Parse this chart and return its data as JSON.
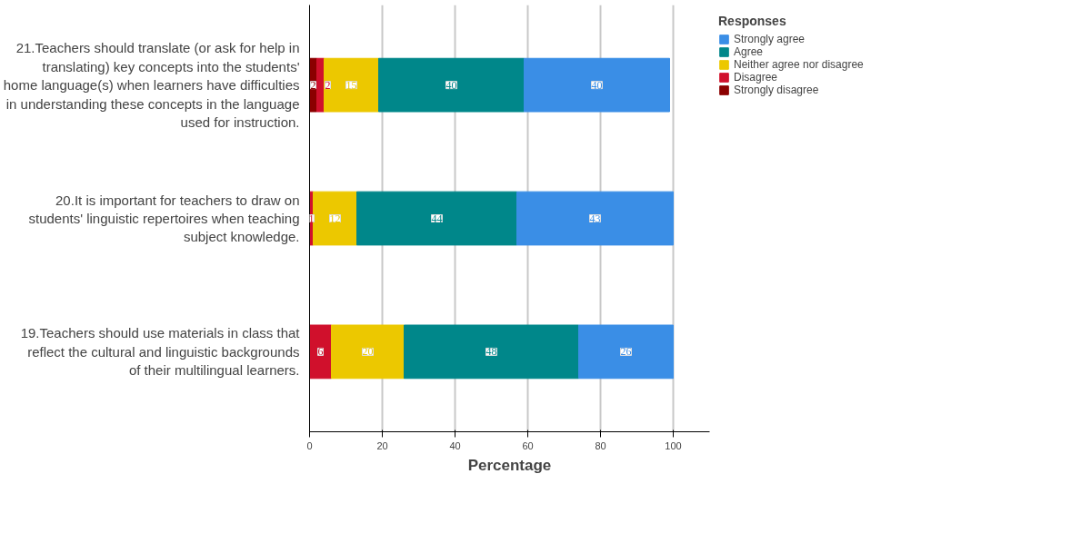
{
  "chart_data": {
    "type": "bar",
    "orientation": "horizontal",
    "stacked": true,
    "xlabel": "Percentage",
    "legend_title": "Responses",
    "legend": "top right",
    "grid": "x",
    "data_labels": true,
    "categories": [
      "21.Teachers should translate (or ask for help in translating) key concepts into the students' home language(s) when learners have difficulties in understanding these concepts in the language used for instruction.",
      "20.It is important for teachers to draw on students' linguistic repertoires when teaching subject knowledge.",
      "19.Teachers should use materials in class that reflect the cultural and linguistic backgrounds of their multilingual learners."
    ],
    "xlim": [
      0,
      110
    ],
    "xticks": [
      0,
      20,
      40,
      60,
      80,
      100
    ],
    "series": [
      {
        "name": "Strongly disagree",
        "color": "#8b0000",
        "values": [
          2,
          null,
          null
        ]
      },
      {
        "name": "Disagree",
        "color": "#d0102c",
        "values": [
          2,
          1,
          6
        ]
      },
      {
        "name": "Neither agree nor disagree",
        "color": "#ecc800",
        "values": [
          15,
          12,
          20
        ]
      },
      {
        "name": "Agree",
        "color": "#00878a",
        "values": [
          40,
          44,
          48
        ]
      },
      {
        "name": "Strongly agree",
        "color": "#3a8ee6",
        "values": [
          40,
          43,
          26
        ]
      }
    ]
  }
}
